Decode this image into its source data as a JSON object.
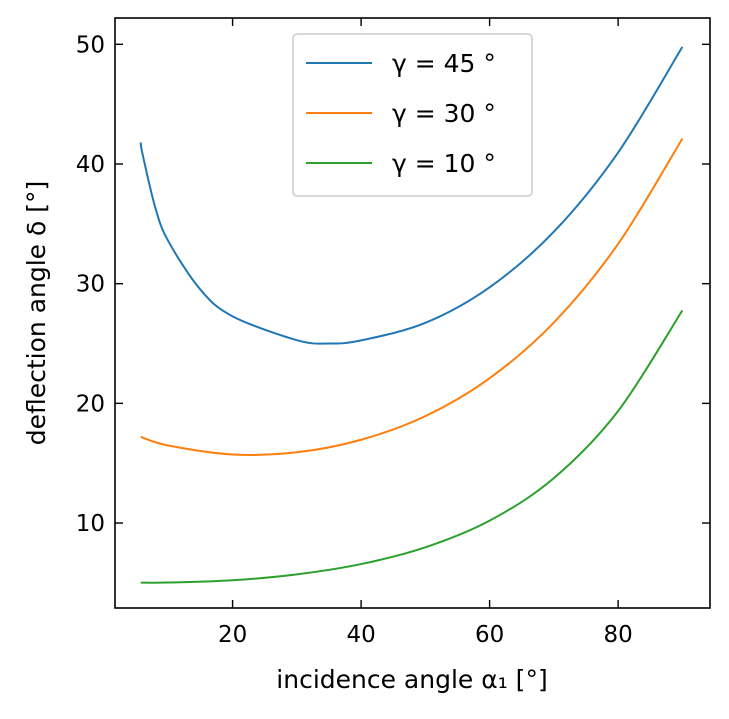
{
  "chart_data": {
    "type": "line",
    "title": "",
    "xlabel": "incidence angle α₁ [°]",
    "ylabel": "deflection angle δ [°]",
    "xlim": [
      1.7,
      94.3
    ],
    "ylim": [
      2.9,
      52.2
    ],
    "xticks": [
      20,
      40,
      60,
      80
    ],
    "xtick_labels": [
      "20",
      "40",
      "60",
      "80"
    ],
    "yticks": [
      10,
      20,
      30,
      40,
      50
    ],
    "ytick_labels": [
      "10",
      "20",
      "30",
      "40",
      "50"
    ],
    "grid": false,
    "legend_position": "top-center",
    "series": [
      {
        "name": "γ = 45 °",
        "color": "#1f77b4",
        "x": [
          5.7,
          6,
          8,
          10,
          15,
          20,
          30,
          35,
          40,
          50,
          60,
          70,
          80,
          90
        ],
        "y": [
          41.8,
          40.8,
          36.3,
          33.55,
          29.5,
          27.27,
          25.28,
          25.0,
          25.26,
          26.73,
          29.7,
          34.34,
          40.96,
          49.79
        ]
      },
      {
        "name": "γ = 30 °",
        "color": "#ff7f0e",
        "x": [
          5.7,
          10,
          20,
          30,
          40,
          50,
          60,
          70,
          80,
          90
        ],
        "y": [
          17.2,
          16.48,
          15.73,
          15.91,
          16.96,
          18.93,
          22.1,
          26.75,
          33.32,
          42.12
        ]
      },
      {
        "name": "γ = 10 °",
        "color": "#2ca02c",
        "x": [
          5.7,
          10,
          20,
          30,
          40,
          50,
          60,
          70,
          80,
          90
        ],
        "y": [
          5.02,
          5.03,
          5.22,
          5.71,
          6.57,
          7.97,
          10.2,
          13.75,
          19.36,
          27.77
        ]
      }
    ]
  }
}
